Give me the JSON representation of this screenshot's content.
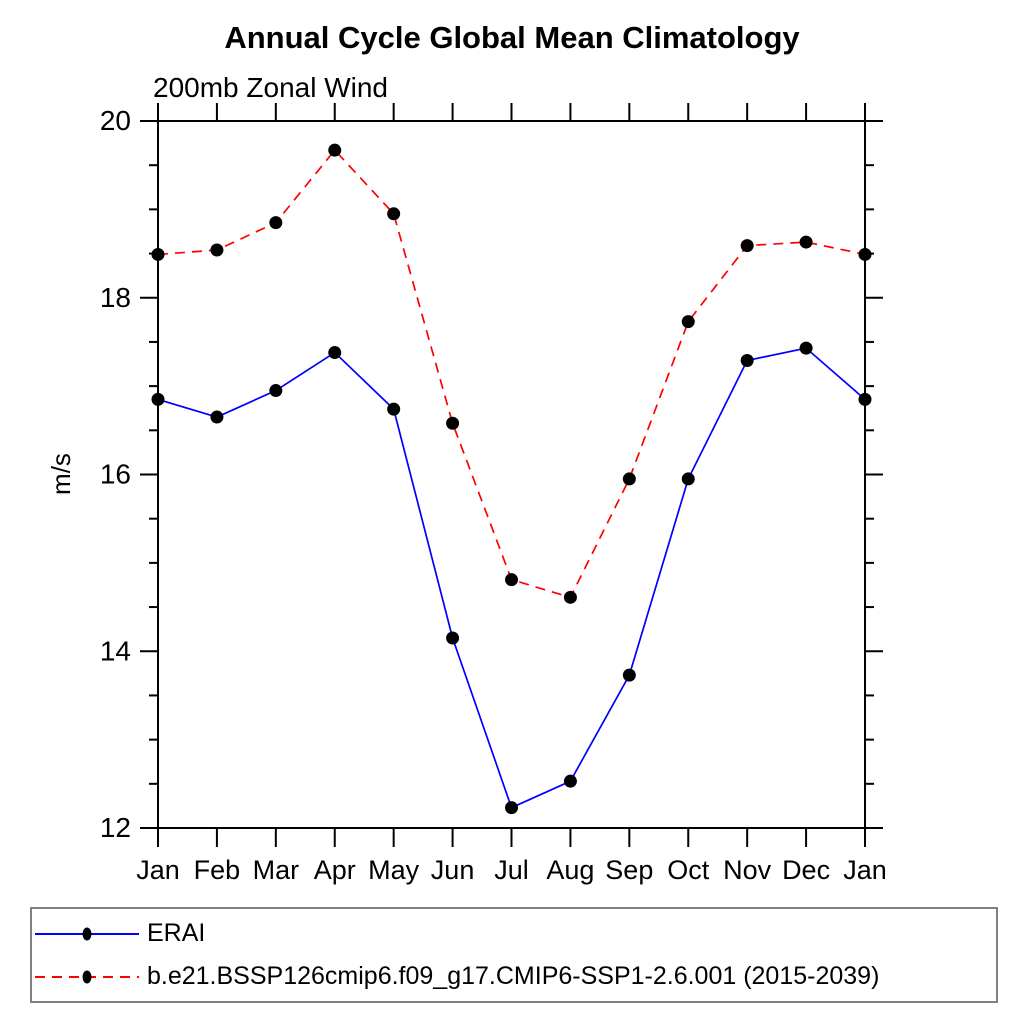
{
  "chart_data": {
    "type": "line",
    "title": "Annual Cycle Global Mean Climatology",
    "subtitle": "200mb Zonal Wind",
    "xlabel": "",
    "ylabel": "m/s",
    "x_tick_labels": [
      "Jan",
      "Feb",
      "Mar",
      "Apr",
      "May",
      "Jun",
      "Jul",
      "Aug",
      "Sep",
      "Oct",
      "Nov",
      "Dec",
      "Jan"
    ],
    "ylim": [
      12,
      20
    ],
    "y_major_ticks": [
      12,
      14,
      16,
      18,
      20
    ],
    "y_minor_step": 0.5,
    "grid": false,
    "legend_position": "bottom-left",
    "series": [
      {
        "name": "ERAI",
        "color": "#0000ff",
        "line_style": "solid",
        "marker": "filled-circle",
        "marker_color": "#000000",
        "values": [
          16.85,
          16.65,
          16.95,
          17.38,
          16.74,
          14.15,
          12.23,
          12.53,
          13.73,
          15.95,
          17.29,
          17.43,
          16.85
        ]
      },
      {
        "name": "b.e21.BSSP126cmip6.f09_g17.CMIP6-SSP1-2.6.001 (2015-2039)",
        "color": "#ff0000",
        "line_style": "dashed",
        "marker": "filled-circle",
        "marker_color": "#000000",
        "values": [
          18.49,
          18.54,
          18.85,
          19.67,
          18.95,
          16.58,
          14.81,
          14.61,
          15.95,
          17.73,
          18.59,
          18.63,
          18.49
        ]
      }
    ]
  },
  "colors": {
    "axis": "#000000",
    "text": "#000000",
    "legend_border": "#808080"
  }
}
